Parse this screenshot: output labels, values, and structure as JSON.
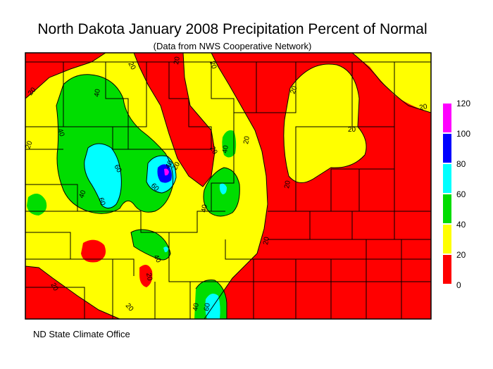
{
  "title": "North Dakota January 2008 Precipitation Percent of Normal",
  "subtitle": "(Data from NWS Cooperative Network)",
  "footer": "ND State Climate Office",
  "legend": {
    "ticks": [
      "120",
      "100",
      "80",
      "60",
      "40",
      "20",
      "0"
    ],
    "bins": [
      {
        "from": 100,
        "to": 120,
        "color": "#ff00ff"
      },
      {
        "from": 80,
        "to": 100,
        "color": "#0000ff"
      },
      {
        "from": 60,
        "to": 80,
        "color": "#00ffff"
      },
      {
        "from": 40,
        "to": 60,
        "color": "#00dd00"
      },
      {
        "from": 20,
        "to": 40,
        "color": "#ffff00"
      },
      {
        "from": 0,
        "to": 20,
        "color": "#ff0000"
      }
    ]
  },
  "contour_labels": [
    "20",
    "40",
    "60",
    "80"
  ],
  "colors": {
    "red": "#ff0000",
    "yellow": "#ffff00",
    "green": "#00dd00",
    "cyan": "#00ffff",
    "blue": "#0000ff",
    "magenta": "#ff00ff"
  }
}
